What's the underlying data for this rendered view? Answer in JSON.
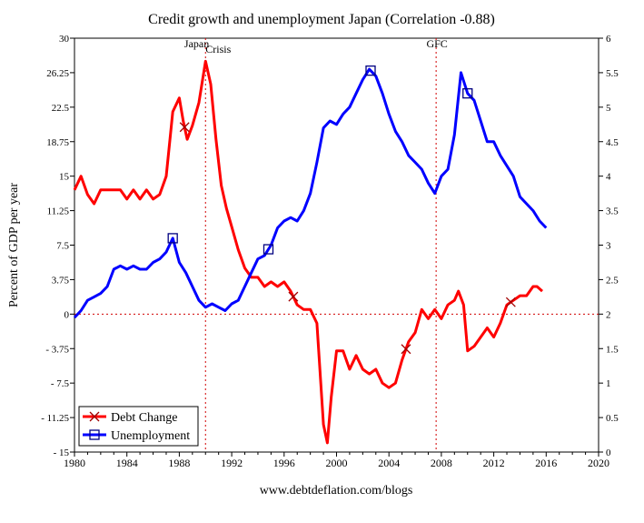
{
  "chart_data": {
    "type": "line",
    "title": "Credit growth and unemployment Japan (Correlation -0.88)",
    "ylabel": "Percent of GDP per year",
    "y2label": "",
    "footer": "www.debtdeflation.com/blogs",
    "xlim": [
      1980,
      2020
    ],
    "ylim": [
      -15,
      30
    ],
    "y2lim": [
      0,
      6
    ],
    "x_ticks": [
      "1980",
      "1984",
      "1988",
      "1992",
      "1996",
      "2000",
      "2004",
      "2008",
      "2012",
      "2016",
      "2020"
    ],
    "y_ticks": [
      "30",
      "26.25",
      "22.5",
      "18.75",
      "15",
      "11.25",
      "7.5",
      "3.75",
      "0",
      "- 3.75",
      "- 7.5",
      "- 11.25",
      "- 15"
    ],
    "y2_ticks": [
      "6",
      "5.5",
      "5",
      "4.5",
      "4",
      "3.5",
      "3",
      "2.5",
      "2",
      "1.5",
      "1",
      "0.5",
      "0"
    ],
    "annotations": [
      {
        "text": "Japan",
        "x": 1990
      },
      {
        "text": "Crisis",
        "x": 1990
      },
      {
        "text": "GFC",
        "x": 2007.6
      }
    ],
    "vlines": [
      1990,
      2007.6
    ],
    "grid": false,
    "legend_position": "bottom-left",
    "series": [
      {
        "name": "Debt Change",
        "axis": "left",
        "color": "#ff0000",
        "marker": "x",
        "x": [
          1980,
          1980.5,
          1981,
          1981.5,
          1982,
          1982.5,
          1983,
          1983.5,
          1984,
          1984.5,
          1985,
          1985.5,
          1986,
          1986.5,
          1987,
          1987.5,
          1988,
          1988.3,
          1988.6,
          1989,
          1989.5,
          1990,
          1990.4,
          1990.8,
          1991.2,
          1991.6,
          1992,
          1992.5,
          1993,
          1993.5,
          1994,
          1994.5,
          1995,
          1995.5,
          1996,
          1996.5,
          1997,
          1997.5,
          1998,
          1998.5,
          1999,
          1999.3,
          1999.6,
          2000,
          2000.5,
          2001,
          2001.5,
          2002,
          2002.5,
          2003,
          2003.5,
          2004,
          2004.5,
          2005,
          2005.5,
          2006,
          2006.5,
          2007,
          2007.5,
          2008,
          2008.5,
          2009,
          2009.3,
          2009.7,
          2010,
          2010.5,
          2011,
          2011.5,
          2012,
          2012.5,
          2013,
          2013.5,
          2014,
          2014.5,
          2015,
          2015.3,
          2015.7
        ],
        "y": [
          13.5,
          15,
          13,
          12,
          13.5,
          13.5,
          13.5,
          13.5,
          12.5,
          13.5,
          12.5,
          13.5,
          12.5,
          13,
          15,
          22,
          23.5,
          21,
          19,
          20.5,
          23,
          27.5,
          25,
          19,
          14,
          11.5,
          9.5,
          7,
          5,
          4,
          4,
          3,
          3.5,
          3,
          3.5,
          2.5,
          1,
          0.5,
          0.5,
          -1,
          -12,
          -14,
          -9,
          -4,
          -4,
          -6,
          -4.5,
          -6,
          -6.5,
          -6,
          -7.5,
          -8,
          -7.5,
          -5,
          -3,
          -2,
          0.5,
          -0.5,
          0.5,
          -0.5,
          1,
          1.5,
          2.5,
          1,
          -4,
          -3.5,
          -2.5,
          -1.5,
          -2.5,
          -1,
          1,
          1.5,
          2,
          2,
          3,
          3,
          2.5
        ],
        "marker_x": [
          1988.4,
          1996.7,
          2005.3,
          2013.3
        ]
      },
      {
        "name": "Unemployment",
        "axis": "right",
        "color": "#0000ff",
        "marker": "square",
        "x": [
          1980,
          1980.5,
          1981,
          1981.5,
          1982,
          1982.5,
          1983,
          1983.5,
          1984,
          1984.5,
          1985,
          1985.5,
          1986,
          1986.5,
          1987,
          1987.5,
          1988,
          1988.5,
          1989,
          1989.5,
          1990,
          1990.5,
          1991,
          1991.5,
          1992,
          1992.5,
          1993,
          1993.5,
          1994,
          1994.5,
          1995,
          1995.5,
          1996,
          1996.5,
          1997,
          1997.5,
          1998,
          1998.5,
          1999,
          1999.5,
          2000,
          2000.5,
          2001,
          2001.5,
          2002,
          2002.5,
          2003,
          2003.5,
          2004,
          2004.5,
          2005,
          2005.5,
          2006,
          2006.5,
          2007,
          2007.5,
          2008,
          2008.5,
          2009,
          2009.5,
          2010,
          2010.5,
          2011,
          2011.5,
          2012,
          2012.5,
          2013,
          2013.5,
          2014,
          2014.5,
          2015,
          2015.5,
          2016
        ],
        "y": [
          1.95,
          2.05,
          2.2,
          2.25,
          2.3,
          2.4,
          2.65,
          2.7,
          2.65,
          2.7,
          2.65,
          2.65,
          2.75,
          2.8,
          2.9,
          3.1,
          2.75,
          2.6,
          2.4,
          2.2,
          2.1,
          2.15,
          2.1,
          2.05,
          2.15,
          2.2,
          2.4,
          2.6,
          2.8,
          2.85,
          3.0,
          3.25,
          3.35,
          3.4,
          3.35,
          3.5,
          3.75,
          4.2,
          4.7,
          4.8,
          4.75,
          4.9,
          5.0,
          5.2,
          5.4,
          5.55,
          5.45,
          5.2,
          4.9,
          4.65,
          4.5,
          4.3,
          4.2,
          4.1,
          3.9,
          3.75,
          4.0,
          4.1,
          4.6,
          5.5,
          5.2,
          5.1,
          4.8,
          4.5,
          4.5,
          4.3,
          4.15,
          4.0,
          3.7,
          3.6,
          3.5,
          3.35,
          3.25
        ],
        "marker_x": [
          1987.5,
          1994.8,
          2002.6,
          2010
        ]
      }
    ]
  }
}
